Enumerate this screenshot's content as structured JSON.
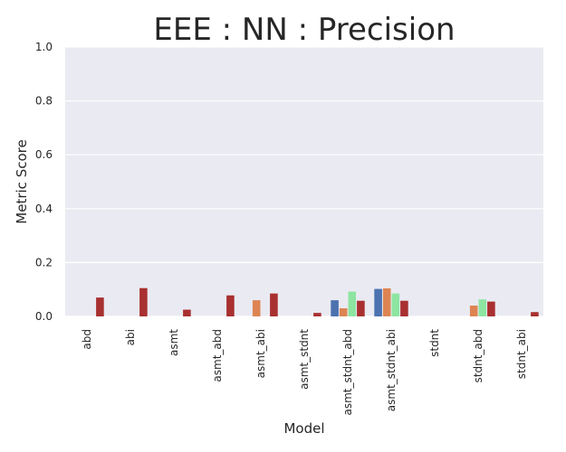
{
  "chart_data": {
    "type": "bar",
    "title": "EEE : NN : Precision",
    "xlabel": "Model",
    "ylabel": "Metric Score",
    "ylim": [
      0,
      1.0
    ],
    "yticks": [
      "0.0",
      "0.2",
      "0.4",
      "0.6",
      "0.8",
      "1.0"
    ],
    "grid": true,
    "categories": [
      "abd",
      "abi",
      "asmt",
      "asmt_abd",
      "asmt_abi",
      "asmt_stdnt",
      "asmt_stdnt_abd",
      "asmt_stdnt_abi",
      "stdnt",
      "stdnt_abd",
      "stdnt_abi"
    ],
    "series": [
      {
        "color": "#4c72b0",
        "values": [
          0,
          0,
          0,
          0,
          0,
          0,
          0.06,
          0.102,
          0,
          0,
          0
        ]
      },
      {
        "color": "#dd8452",
        "values": [
          0,
          0,
          0,
          0,
          0.06,
          0,
          0.03,
          0.104,
          0,
          0.04,
          0
        ]
      },
      {
        "color": "#8de5a1",
        "values": [
          0,
          0,
          0,
          0,
          0,
          0,
          0.092,
          0.085,
          0,
          0.063,
          0
        ]
      },
      {
        "color": "#a93030",
        "values": [
          0.07,
          0.105,
          0.025,
          0.078,
          0.085,
          0.013,
          0.058,
          0.058,
          0,
          0.055,
          0.016
        ]
      }
    ]
  }
}
